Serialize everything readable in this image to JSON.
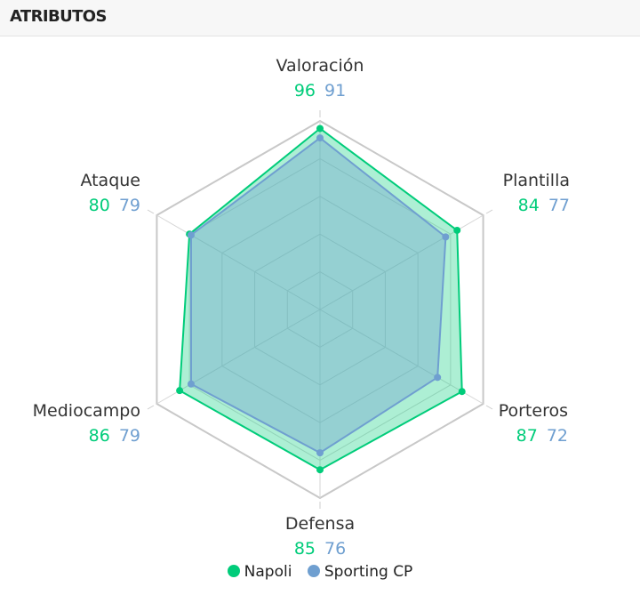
{
  "header": {
    "title": "ATRIBUTOS"
  },
  "chart_data": {
    "type": "radar",
    "title": "",
    "max": 100,
    "categories": [
      "Valoración",
      "Plantilla",
      "Porteros",
      "Defensa",
      "Mediocampo",
      "Ataque"
    ],
    "series": [
      {
        "name": "Napoli",
        "color": "#00cc7a",
        "values": [
          96,
          84,
          87,
          85,
          86,
          80
        ]
      },
      {
        "name": "Sporting CP",
        "color": "#6f9fd0",
        "values": [
          91,
          77,
          72,
          76,
          79,
          79
        ]
      }
    ],
    "grid_levels": 5,
    "legend_position": "bottom"
  }
}
